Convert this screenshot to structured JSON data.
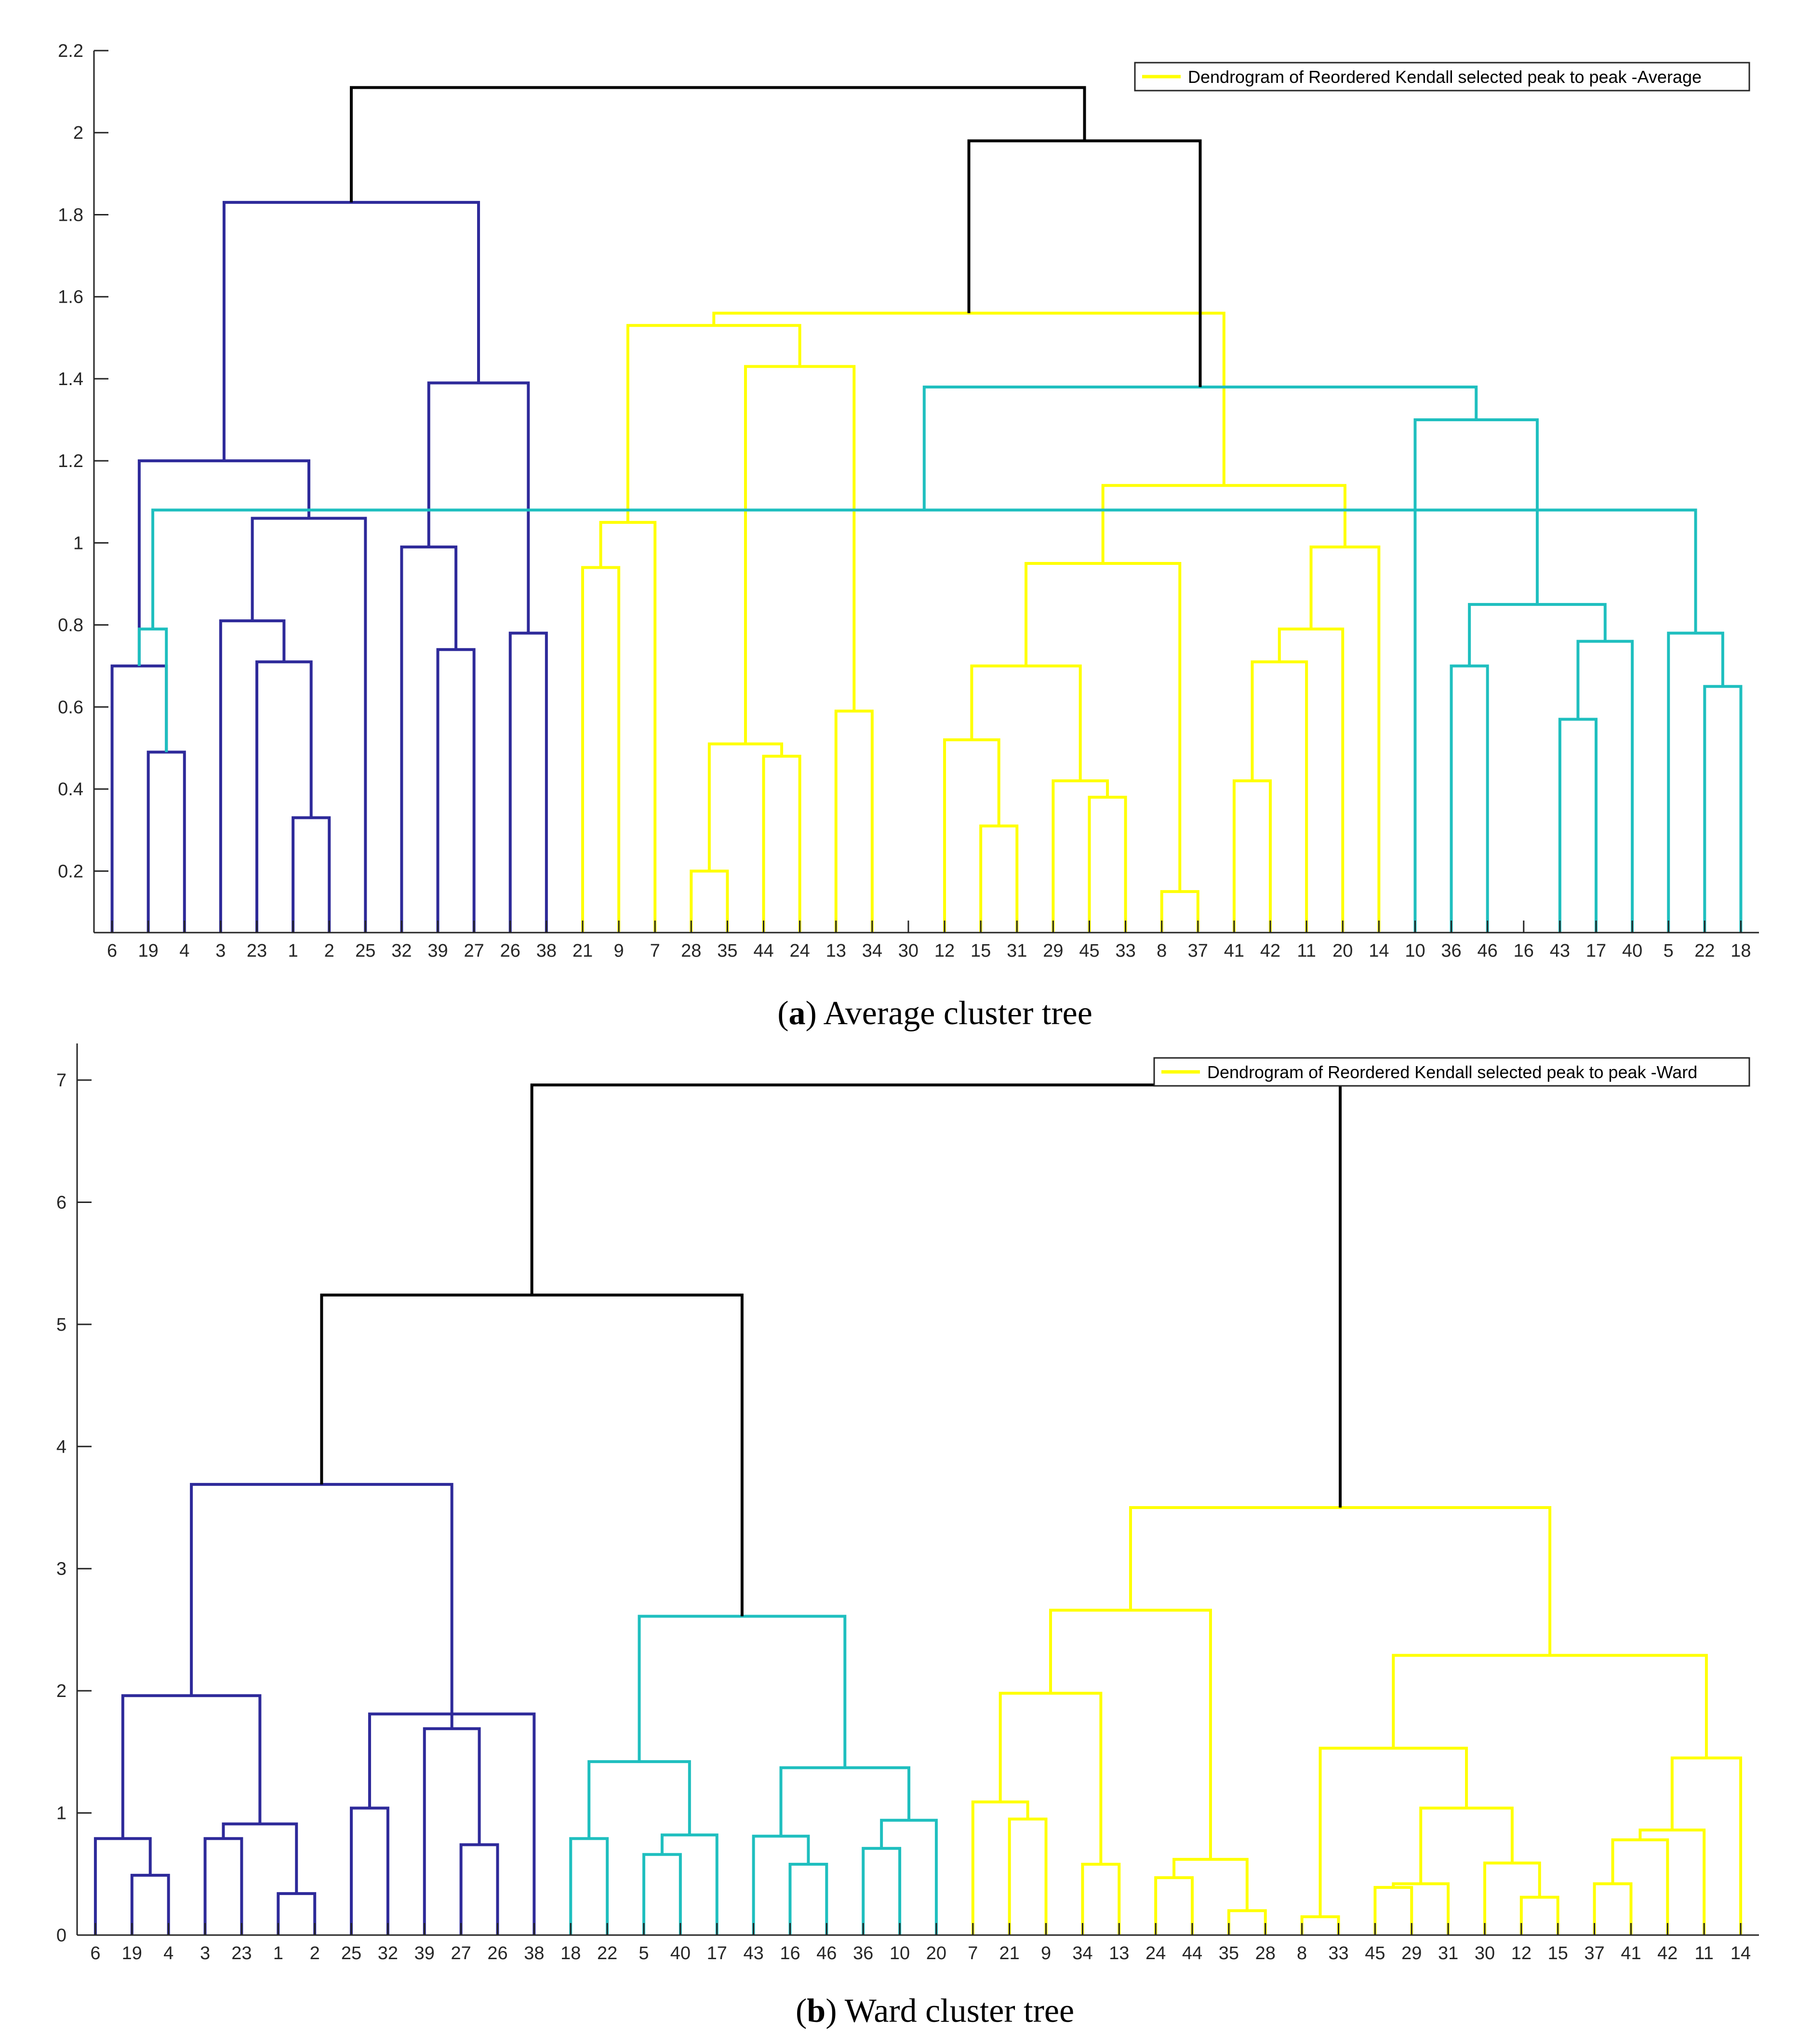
{
  "chart_data": [
    {
      "type": "dendrogram",
      "caption": {
        "letter": "a",
        "text": "Average cluster tree"
      },
      "legend": {
        "label": "Dendrogram of Reordered Kendall selected peak to peak -Average",
        "color": "#ffff00"
      },
      "leaves": [
        "6",
        "19",
        "4",
        "3",
        "23",
        "1",
        "2",
        "25",
        "32",
        "39",
        "27",
        "26",
        "38",
        "21",
        "9",
        "7",
        "28",
        "35",
        "44",
        "24",
        "13",
        "34",
        "30",
        "12",
        "15",
        "31",
        "29",
        "45",
        "33",
        "8",
        "37",
        "41",
        "42",
        "11",
        "20",
        "14",
        "10",
        "36",
        "46",
        "16",
        "43",
        "17",
        "40",
        "5",
        "22",
        "18"
      ],
      "ylim": [
        0.05,
        2.2
      ],
      "yticks": [
        0.2,
        0.4,
        0.6,
        0.8,
        1,
        1.2,
        1.4,
        1.6,
        1.8,
        2,
        2.2
      ],
      "ytick_labels": [
        "0.2",
        "0.4",
        "0.6",
        "0.8",
        "1",
        "1.2",
        "1.4",
        "1.6",
        "1.8",
        "2",
        "2.2"
      ],
      "colors": {
        "blue": "#2e2a9a",
        "yellow": "#ffff00",
        "cyan": "#1fbfbf",
        "black": "#000000"
      },
      "links": [
        [
          2,
          3,
          0.49,
          "blue"
        ],
        [
          1,
          47,
          0.7,
          "blue"
        ],
        [
          6,
          7,
          0.33,
          "blue"
        ],
        [
          5,
          49,
          0.71,
          "blue"
        ],
        [
          4,
          50,
          0.81,
          "blue"
        ],
        [
          51,
          8,
          1.06,
          "blue"
        ],
        [
          48,
          52,
          1.2,
          "blue"
        ],
        [
          10,
          11,
          0.74,
          "blue"
        ],
        [
          9,
          54,
          0.99,
          "blue"
        ],
        [
          12,
          13,
          0.78,
          "blue"
        ],
        [
          55,
          56,
          1.39,
          "blue"
        ],
        [
          53,
          57,
          1.83,
          "blue"
        ],
        [
          14,
          15,
          0.94,
          "yellow"
        ],
        [
          59,
          16,
          1.05,
          "yellow"
        ],
        [
          17,
          18,
          0.2,
          "yellow"
        ],
        [
          19,
          20,
          0.48,
          "yellow"
        ],
        [
          61,
          62,
          0.51,
          "yellow"
        ],
        [
          21,
          22,
          0.59,
          "yellow"
        ],
        [
          63,
          64,
          1.43,
          "yellow"
        ],
        [
          60,
          65,
          1.53,
          "yellow"
        ],
        [
          25,
          26,
          0.31,
          "yellow"
        ],
        [
          24,
          67,
          0.52,
          "yellow"
        ],
        [
          28,
          29,
          0.38,
          "yellow"
        ],
        [
          27,
          69,
          0.42,
          "yellow"
        ],
        [
          68,
          70,
          0.7,
          "yellow"
        ],
        [
          30,
          31,
          0.15,
          "yellow"
        ],
        [
          71,
          72,
          0.95,
          "yellow"
        ],
        [
          32,
          33,
          0.42,
          "yellow"
        ],
        [
          74,
          34,
          0.71,
          "yellow"
        ],
        [
          75,
          35,
          0.79,
          "yellow"
        ],
        [
          76,
          36,
          0.99,
          "yellow"
        ],
        [
          73,
          77,
          1.14,
          "yellow"
        ],
        [
          66,
          78,
          1.56,
          "yellow"
        ],
        [
          38,
          39,
          0.7,
          "cyan"
        ],
        [
          41,
          42,
          0.57,
          "cyan"
        ],
        [
          81,
          43,
          0.76,
          "cyan"
        ],
        [
          80,
          82,
          0.85,
          "cyan"
        ],
        [
          37,
          83,
          1.3,
          "cyan"
        ],
        [
          45,
          46,
          0.65,
          "cyan"
        ],
        [
          44,
          85,
          0.78,
          "cyan"
        ],
        [
          47,
          48,
          0.79,
          "cyan"
        ],
        [
          86,
          87,
          1.08,
          "cyan"
        ],
        [
          84,
          88,
          1.38,
          "cyan"
        ],
        [
          79,
          89,
          1.98,
          "black"
        ],
        [
          58,
          90,
          2.11,
          "black"
        ]
      ]
    },
    {
      "type": "dendrogram",
      "caption": {
        "letter": "b",
        "text": "Ward cluster tree"
      },
      "legend": {
        "label": "Dendrogram of Reordered Kendall selected peak to peak -Ward",
        "color": "#ffff00"
      },
      "leaves": [
        "6",
        "19",
        "4",
        "3",
        "23",
        "1",
        "2",
        "25",
        "32",
        "39",
        "27",
        "26",
        "38",
        "18",
        "22",
        "5",
        "40",
        "17",
        "43",
        "16",
        "46",
        "36",
        "10",
        "20",
        "7",
        "21",
        "9",
        "34",
        "13",
        "24",
        "44",
        "35",
        "28",
        "8",
        "33",
        "45",
        "29",
        "31",
        "30",
        "12",
        "15",
        "37",
        "41",
        "42",
        "11",
        "14"
      ],
      "ylim": [
        0,
        7.3
      ],
      "yticks": [
        0,
        1,
        2,
        3,
        4,
        5,
        6,
        7
      ],
      "ytick_labels": [
        "0",
        "1",
        "2",
        "3",
        "4",
        "5",
        "6",
        "7"
      ],
      "colors": {
        "blue": "#2e2a9a",
        "yellow": "#ffff00",
        "cyan": "#1fbfbf",
        "black": "#000000"
      },
      "links": [
        [
          2,
          3,
          0.49,
          "blue"
        ],
        [
          1,
          47,
          0.79,
          "blue"
        ],
        [
          4,
          5,
          0.79,
          "blue"
        ],
        [
          6,
          7,
          0.34,
          "blue"
        ],
        [
          49,
          50,
          0.91,
          "blue"
        ],
        [
          48,
          51,
          1.96,
          "blue"
        ],
        [
          8,
          9,
          1.04,
          "blue"
        ],
        [
          11,
          12,
          0.74,
          "blue"
        ],
        [
          10,
          54,
          1.69,
          "blue"
        ],
        [
          13,
          53,
          1.81,
          "blue"
        ],
        [
          55,
          56,
          1.81,
          "blue"
        ],
        [
          52,
          57,
          3.69,
          "blue"
        ],
        [
          14,
          15,
          0.79,
          "cyan"
        ],
        [
          16,
          17,
          0.66,
          "cyan"
        ],
        [
          60,
          18,
          0.82,
          "cyan"
        ],
        [
          59,
          61,
          1.42,
          "cyan"
        ],
        [
          20,
          21,
          0.58,
          "cyan"
        ],
        [
          19,
          63,
          0.81,
          "cyan"
        ],
        [
          22,
          23,
          0.71,
          "cyan"
        ],
        [
          65,
          24,
          0.94,
          "cyan"
        ],
        [
          64,
          66,
          1.37,
          "cyan"
        ],
        [
          62,
          67,
          2.61,
          "cyan"
        ],
        [
          58,
          68,
          5.24,
          "black"
        ],
        [
          26,
          27,
          0.95,
          "yellow"
        ],
        [
          25,
          70,
          1.09,
          "yellow"
        ],
        [
          28,
          29,
          0.58,
          "yellow"
        ],
        [
          71,
          72,
          1.98,
          "yellow"
        ],
        [
          30,
          31,
          0.47,
          "yellow"
        ],
        [
          32,
          33,
          0.2,
          "yellow"
        ],
        [
          74,
          75,
          0.62,
          "yellow"
        ],
        [
          73,
          76,
          2.66,
          "yellow"
        ],
        [
          34,
          35,
          0.15,
          "yellow"
        ],
        [
          36,
          37,
          0.39,
          "yellow"
        ],
        [
          79,
          38,
          0.42,
          "yellow"
        ],
        [
          40,
          41,
          0.31,
          "yellow"
        ],
        [
          39,
          81,
          0.59,
          "yellow"
        ],
        [
          80,
          82,
          1.04,
          "yellow"
        ],
        [
          78,
          83,
          1.53,
          "yellow"
        ],
        [
          42,
          43,
          0.42,
          "yellow"
        ],
        [
          85,
          44,
          0.78,
          "yellow"
        ],
        [
          86,
          45,
          0.86,
          "yellow"
        ],
        [
          87,
          46,
          1.45,
          "yellow"
        ],
        [
          84,
          88,
          2.29,
          "yellow"
        ],
        [
          77,
          89,
          3.5,
          "yellow"
        ],
        [
          69,
          90,
          6.96,
          "black"
        ]
      ]
    }
  ]
}
